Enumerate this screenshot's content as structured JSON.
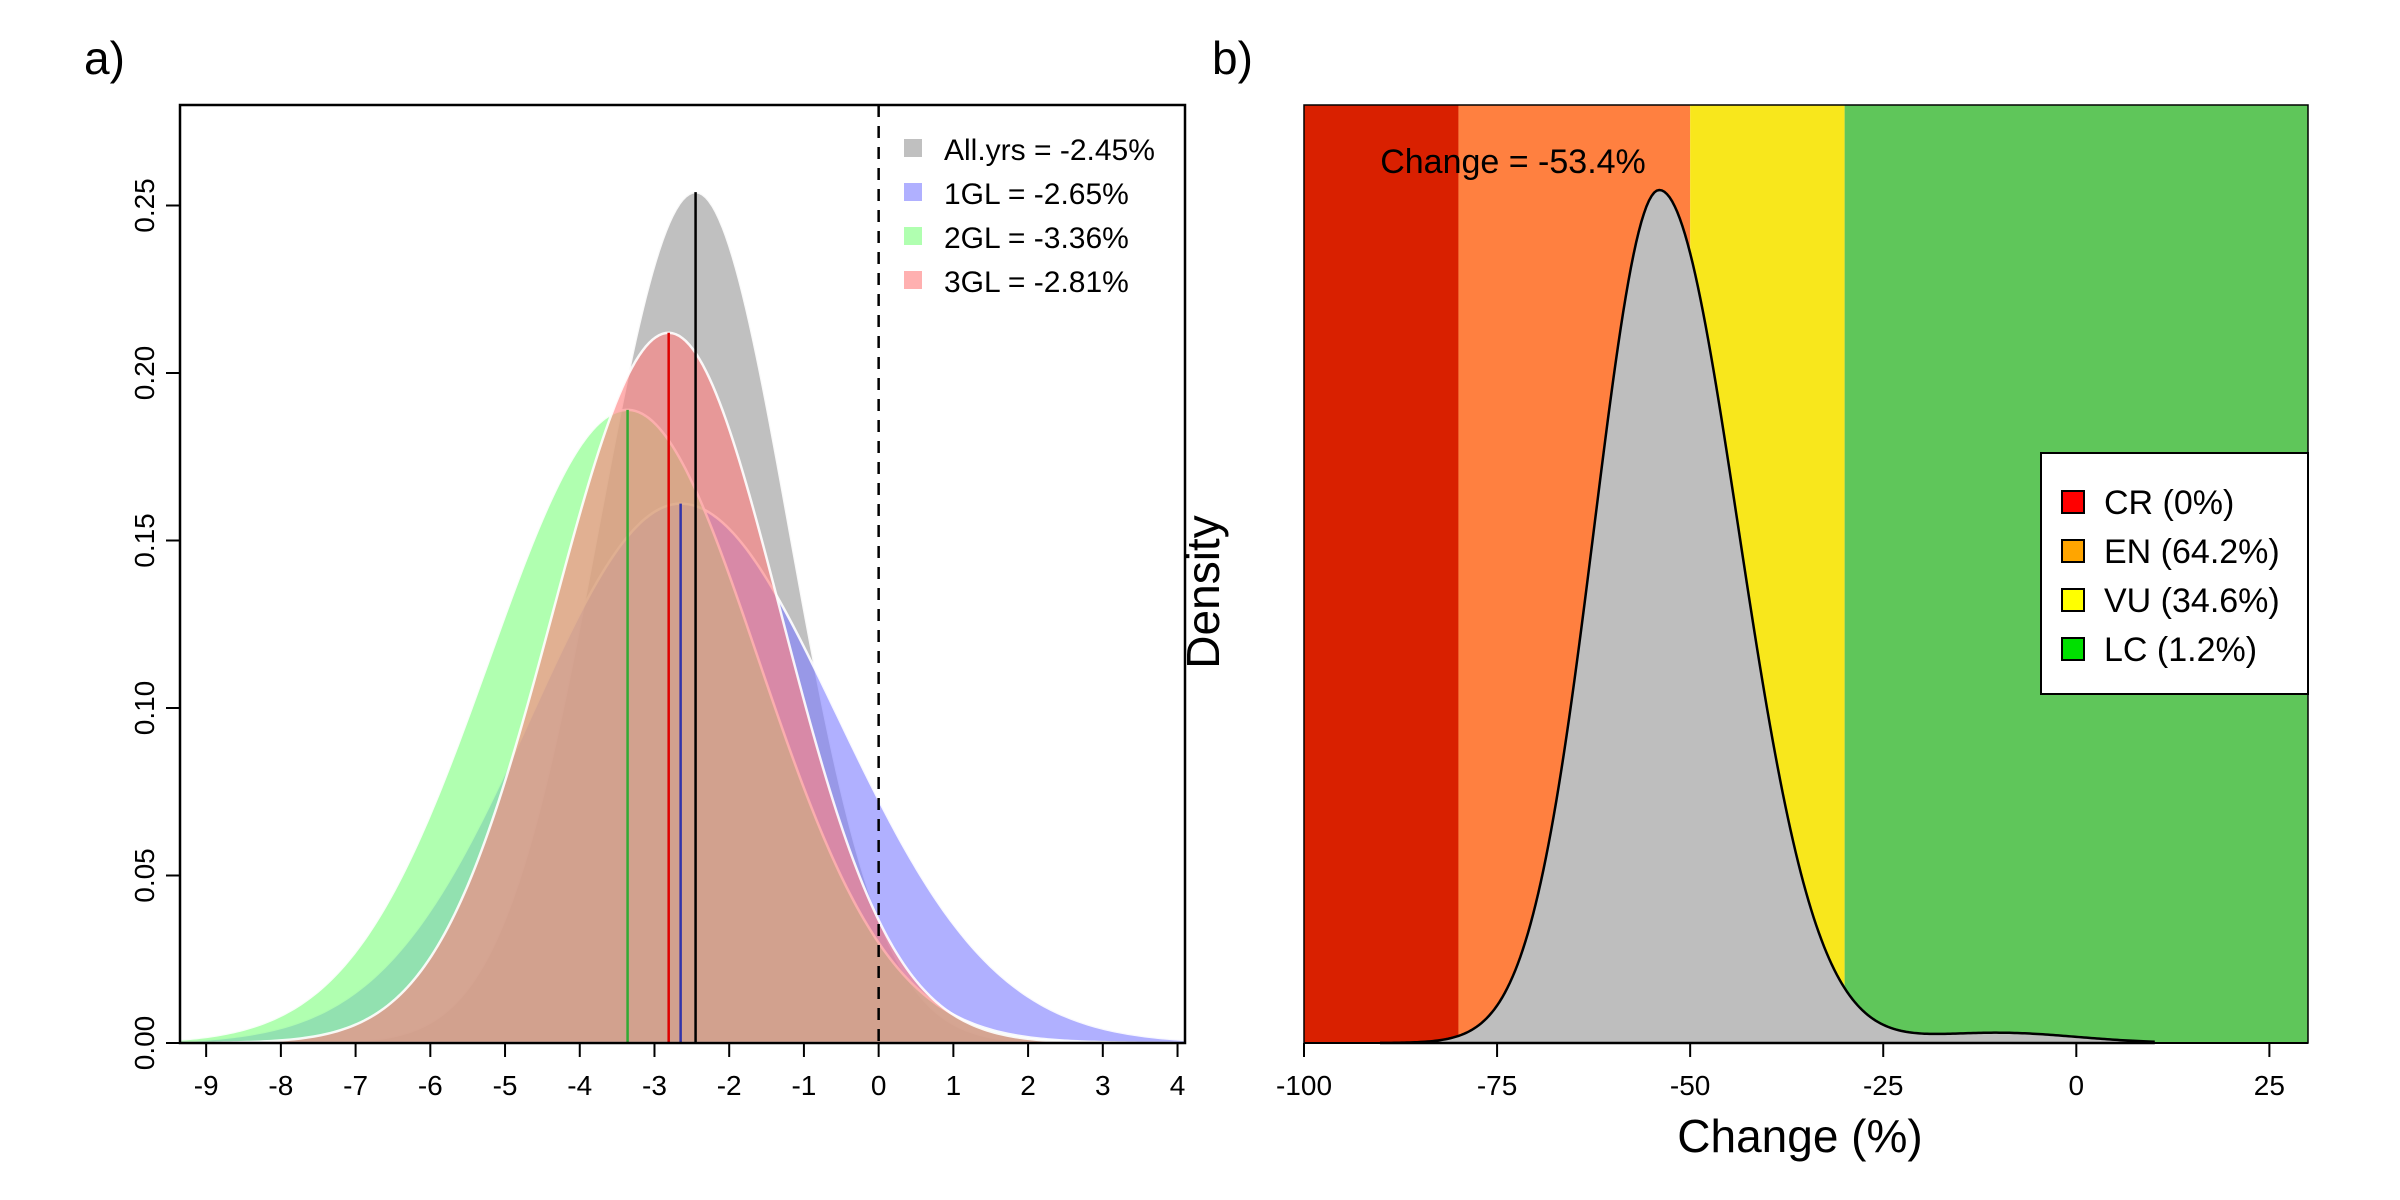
{
  "chart_data": [
    {
      "panel_label": "a)",
      "type": "area",
      "xlim": [
        -9.35,
        4.1
      ],
      "ylim": [
        0,
        0.28
      ],
      "xticks": [
        -9,
        -8,
        -7,
        -6,
        -5,
        -4,
        -3,
        -2,
        -1,
        0,
        1,
        2,
        3,
        4
      ],
      "yticks": [
        0.0,
        0.05,
        0.1,
        0.15,
        0.2,
        0.25
      ],
      "ytick_labels": [
        "0.00",
        "0.05",
        "0.10",
        "0.15",
        "0.20",
        "0.25"
      ],
      "reference_line_x": 0,
      "legend_position": "top-right",
      "series": [
        {
          "name": "All.yrs = -2.45%",
          "mean": -2.45,
          "peak": 0.254,
          "sd_left": 1.3,
          "sd_right": 1.25,
          "fill": "#999999",
          "line": "#000000"
        },
        {
          "name": "1GL = -2.65%",
          "mean": -2.65,
          "peak": 0.161,
          "sd_left": 2.0,
          "sd_right": 2.1,
          "fill": "#8080ff",
          "line": "#3333aa"
        },
        {
          "name": "2GL = -3.36%",
          "mean": -3.36,
          "peak": 0.189,
          "sd_left": 1.85,
          "sd_right": 1.75,
          "fill": "#80ff80",
          "line": "#33aa33"
        },
        {
          "name": "3GL = -2.81%",
          "mean": -2.81,
          "peak": 0.212,
          "sd_left": 1.55,
          "sd_right": 1.5,
          "fill": "#ff8080",
          "line": "#dd0000"
        }
      ]
    },
    {
      "panel_label": "b)",
      "type": "area",
      "xlabel": "Change (%)",
      "ylabel": "Density",
      "xlim": [
        -100,
        30
      ],
      "xticks": [
        -100,
        -75,
        -50,
        -25,
        0,
        25
      ],
      "annotation": "Change = -53.4%",
      "peak_x": -54,
      "bands": [
        {
          "from": -100,
          "to": -80,
          "color": "#d92000"
        },
        {
          "from": -80,
          "to": -50,
          "color": "#ff8040"
        },
        {
          "from": -50,
          "to": -30,
          "color": "#f8e71c"
        },
        {
          "from": -30,
          "to": 30,
          "color": "#5fc65a"
        }
      ],
      "legend_position": "right",
      "legend": [
        {
          "label": "CR (0%)",
          "color": "#ff0000"
        },
        {
          "label": "EN (64.2%)",
          "color": "#ffa500"
        },
        {
          "label": "VU (34.6%)",
          "color": "#ffff00"
        },
        {
          "label": "LC (1.2%)",
          "color": "#00e000"
        }
      ]
    }
  ]
}
